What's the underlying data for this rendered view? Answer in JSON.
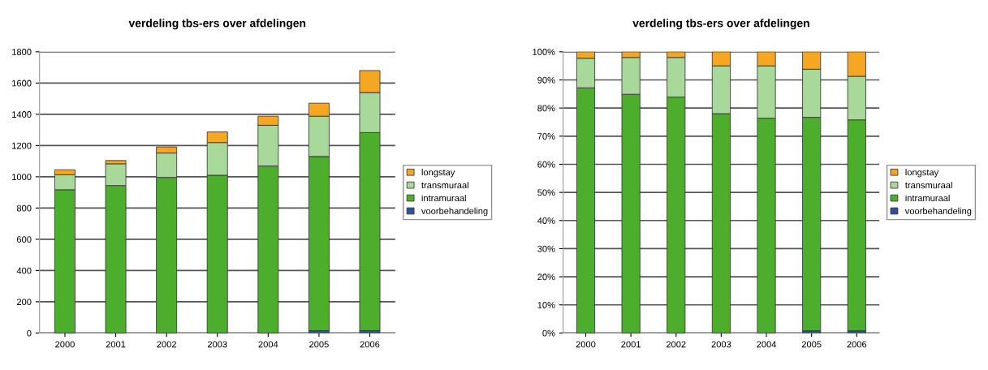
{
  "chart_data": [
    {
      "type": "bar",
      "title": "verdeling tbs-ers over afdelingen",
      "stacked": true,
      "categories": [
        "2000",
        "2001",
        "2002",
        "2003",
        "2004",
        "2005",
        "2006"
      ],
      "series": [
        {
          "name": "voorbehandeling",
          "color": "#2f4fa0",
          "values": [
            0,
            0,
            0,
            0,
            0,
            15,
            15
          ]
        },
        {
          "name": "intramuraal",
          "color": "#4cae2c",
          "values": [
            917,
            944,
            996,
            1010,
            1069,
            1115,
            1268
          ]
        },
        {
          "name": "transmuraal",
          "color": "#a8d89a",
          "values": [
            96,
            139,
            156,
            209,
            261,
            258,
            256
          ]
        },
        {
          "name": "longstay",
          "color": "#f5a623",
          "values": [
            32,
            21,
            39,
            68,
            58,
            83,
            141
          ]
        }
      ],
      "ylim": [
        0,
        1800
      ],
      "yticks": [
        0,
        200,
        400,
        600,
        800,
        1000,
        1200,
        1400,
        1600,
        1800
      ],
      "grid": "y",
      "legend": "right"
    },
    {
      "type": "bar",
      "title": "verdeling tbs-ers over afdelingen",
      "stacked": true,
      "categories": [
        "2000",
        "2001",
        "2002",
        "2003",
        "2004",
        "2005",
        "2006"
      ],
      "series": [
        {
          "name": "voorbehandeling",
          "color": "#2f4fa0",
          "values": [
            0,
            0,
            0,
            0,
            0,
            0.8,
            0.8
          ]
        },
        {
          "name": "intramuraal",
          "color": "#4cae2c",
          "values": [
            87.2,
            84.9,
            83.9,
            78,
            76.4,
            75.9,
            75
          ]
        },
        {
          "name": "transmuraal",
          "color": "#a8d89a",
          "values": [
            10.5,
            13.1,
            14.1,
            17,
            18.6,
            17.1,
            15.5
          ]
        },
        {
          "name": "longstay",
          "color": "#f5a623",
          "values": [
            2.3,
            2.0,
            2.0,
            5,
            5,
            6.2,
            8.7
          ]
        }
      ],
      "ylim": [
        0,
        100
      ],
      "yticks": [
        {
          "value": 0,
          "label": "0%"
        },
        {
          "value": 10,
          "label": "10%"
        },
        {
          "value": 20,
          "label": "20%"
        },
        {
          "value": 30,
          "label": "30%"
        },
        {
          "value": 40,
          "label": "40%"
        },
        {
          "value": 50,
          "label": "50%"
        },
        {
          "value": 60,
          "label": "60%"
        },
        {
          "value": 70,
          "label": "70%"
        },
        {
          "value": 80,
          "label": "80%"
        },
        {
          "value": 90,
          "label": "90%"
        },
        {
          "value": 100,
          "label": "100%"
        }
      ],
      "grid": "y",
      "legend": "right"
    }
  ]
}
